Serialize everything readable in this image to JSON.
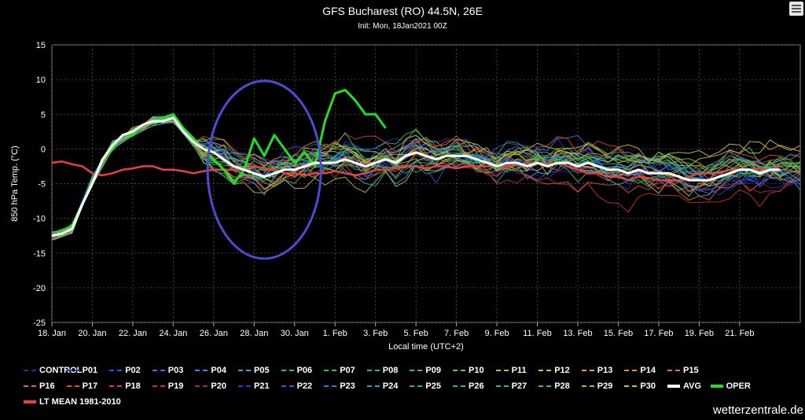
{
  "chart_data": {
    "type": "line",
    "title": "GFS Bucharest (RO) 44.5N, 26E",
    "subtitle": "Init: Mon, 18Jan2021 00Z",
    "xlabel": "Local time (UTC+2)",
    "ylabel": "850 hPa Temp. (°C)",
    "ylim": [
      -25,
      15
    ],
    "yticks": [
      15,
      10,
      5,
      0,
      -5,
      -10,
      -15,
      -20,
      -25
    ],
    "xlim": [
      0,
      37
    ],
    "xticks": [
      {
        "day": 0,
        "label": "18. Jan"
      },
      {
        "day": 2,
        "label": "20. Jan"
      },
      {
        "day": 4,
        "label": "22. Jan"
      },
      {
        "day": 6,
        "label": "24. Jan"
      },
      {
        "day": 8,
        "label": "26. Jan"
      },
      {
        "day": 10,
        "label": "28. Jan"
      },
      {
        "day": 12,
        "label": "30. Jan"
      },
      {
        "day": 14,
        "label": "1. Feb"
      },
      {
        "day": 16,
        "label": "3. Feb"
      },
      {
        "day": 18,
        "label": "5. Feb"
      },
      {
        "day": 20,
        "label": "7. Feb"
      },
      {
        "day": 22,
        "label": "9. Feb"
      },
      {
        "day": 24,
        "label": "11. Feb"
      },
      {
        "day": 26,
        "label": "13. Feb"
      },
      {
        "day": 28,
        "label": "15. Feb"
      },
      {
        "day": 30,
        "label": "17. Feb"
      },
      {
        "day": 32,
        "label": "19. Feb"
      },
      {
        "day": 34,
        "label": "21. Feb"
      }
    ],
    "grid": true,
    "legend_position": "bottom",
    "avg": [
      [
        0,
        -12.5
      ],
      [
        0.5,
        -12.2
      ],
      [
        1,
        -11.5
      ],
      [
        1.5,
        -8
      ],
      [
        2,
        -5
      ],
      [
        2.5,
        -1.5
      ],
      [
        3,
        0.5
      ],
      [
        3.5,
        2
      ],
      [
        4,
        2.5
      ],
      [
        4.5,
        3.5
      ],
      [
        5,
        4
      ],
      [
        5.5,
        4
      ],
      [
        6,
        4.5
      ],
      [
        6.5,
        2.5
      ],
      [
        7,
        1
      ],
      [
        7.5,
        0
      ],
      [
        8,
        -0.5
      ],
      [
        8.5,
        -1.5
      ],
      [
        9,
        -2.5
      ],
      [
        9.5,
        -3
      ],
      [
        10,
        -3.5
      ],
      [
        10.5,
        -4
      ],
      [
        11,
        -3.5
      ],
      [
        11.5,
        -3
      ],
      [
        12,
        -3
      ],
      [
        12.5,
        -2.5
      ],
      [
        13,
        -2
      ],
      [
        13.5,
        -2
      ],
      [
        14,
        -2
      ],
      [
        14.5,
        -1.5
      ],
      [
        15,
        -2
      ],
      [
        15.5,
        -2.5
      ],
      [
        16,
        -2
      ],
      [
        16.5,
        -1.5
      ],
      [
        17,
        -2
      ],
      [
        17.5,
        -1
      ],
      [
        18,
        -0.5
      ],
      [
        18.5,
        -1
      ],
      [
        19,
        -1.5
      ],
      [
        19.5,
        -1
      ],
      [
        20,
        -1
      ],
      [
        20.5,
        -1
      ],
      [
        21,
        -1.5
      ],
      [
        21.5,
        -2
      ],
      [
        22,
        -2.5
      ],
      [
        22.5,
        -2
      ],
      [
        23,
        -2
      ],
      [
        23.5,
        -2.5
      ],
      [
        24,
        -2
      ],
      [
        24.5,
        -2.5
      ],
      [
        25,
        -2
      ],
      [
        25.5,
        -2
      ],
      [
        26,
        -2.5
      ],
      [
        26.5,
        -2
      ],
      [
        27,
        -2.5
      ],
      [
        27.5,
        -3
      ],
      [
        28,
        -3
      ],
      [
        28.5,
        -3.5
      ],
      [
        29,
        -3
      ],
      [
        29.5,
        -3.5
      ],
      [
        30,
        -3.5
      ],
      [
        30.5,
        -3.5
      ],
      [
        31,
        -4
      ],
      [
        31.5,
        -4.5
      ],
      [
        32,
        -4.5
      ],
      [
        32.5,
        -4.5
      ],
      [
        33,
        -4
      ],
      [
        33.5,
        -3.5
      ],
      [
        34,
        -3
      ],
      [
        34.5,
        -3
      ],
      [
        35,
        -3.5
      ],
      [
        35.5,
        -3
      ],
      [
        36,
        -3
      ]
    ],
    "oper": [
      [
        0,
        -12.5
      ],
      [
        0.5,
        -12
      ],
      [
        1,
        -11
      ],
      [
        1.5,
        -8
      ],
      [
        2,
        -5
      ],
      [
        2.5,
        -1.5
      ],
      [
        3,
        0
      ],
      [
        3.5,
        2
      ],
      [
        4,
        2
      ],
      [
        4.5,
        3.5
      ],
      [
        5,
        4
      ],
      [
        5.5,
        4.5
      ],
      [
        6,
        5
      ],
      [
        6.5,
        3
      ],
      [
        7,
        1.5
      ],
      [
        7.5,
        0
      ],
      [
        8,
        -1.5
      ],
      [
        8.5,
        -3
      ],
      [
        9,
        -5
      ],
      [
        9.5,
        -3
      ],
      [
        10,
        1.5
      ],
      [
        10.5,
        -1
      ],
      [
        11,
        2
      ],
      [
        11.5,
        0
      ],
      [
        12,
        -2
      ],
      [
        12.5,
        -0.5
      ],
      [
        13,
        -2.5
      ],
      [
        13.5,
        4
      ],
      [
        14,
        8
      ],
      [
        14.5,
        8.5
      ],
      [
        15,
        7
      ],
      [
        15.5,
        5
      ],
      [
        16,
        5
      ],
      [
        16.5,
        3
      ]
    ],
    "lt_mean": [
      [
        0,
        -2
      ],
      [
        0.5,
        -1.8
      ],
      [
        1,
        -2.2
      ],
      [
        1.5,
        -2.5
      ],
      [
        2,
        -3.5
      ],
      [
        2.5,
        -3.8
      ],
      [
        3,
        -3.5
      ],
      [
        3.5,
        -3
      ],
      [
        4,
        -2.8
      ],
      [
        4.5,
        -2.5
      ],
      [
        5,
        -2.5
      ],
      [
        5.5,
        -3
      ],
      [
        6,
        -3
      ],
      [
        6.5,
        -3.2
      ],
      [
        7,
        -3.5
      ],
      [
        7.5,
        -3.2
      ],
      [
        8,
        -3
      ],
      [
        8.5,
        -3
      ],
      [
        9,
        -3
      ],
      [
        9.5,
        -2.8
      ],
      [
        10,
        -2.5
      ],
      [
        10.5,
        -2.8
      ],
      [
        11,
        -3
      ],
      [
        11.5,
        -3.5
      ],
      [
        12,
        -3.5
      ],
      [
        12.5,
        -3.8
      ],
      [
        13,
        -3.5
      ],
      [
        13.5,
        -3.5
      ],
      [
        14,
        -3.2
      ],
      [
        14.5,
        -3.5
      ],
      [
        15,
        -3.8
      ],
      [
        15.5,
        -3.5
      ],
      [
        16,
        -3
      ],
      [
        16.5,
        -3
      ],
      [
        17,
        -2.8
      ],
      [
        17.5,
        -2.5
      ],
      [
        18,
        -2.5
      ],
      [
        18.5,
        -2.8
      ],
      [
        19,
        -2.5
      ],
      [
        19.5,
        -2.5
      ],
      [
        20,
        -2.8
      ],
      [
        20.5,
        -2.5
      ],
      [
        21,
        -2.5
      ],
      [
        21.5,
        -2.5
      ],
      [
        22,
        -2.5
      ],
      [
        22.5,
        -2.5
      ],
      [
        23,
        -2.3
      ],
      [
        23.5,
        -2
      ],
      [
        24,
        -2
      ],
      [
        24.5,
        -2.2
      ],
      [
        25,
        -2
      ],
      [
        25.5,
        -2.5
      ],
      [
        26,
        -3
      ],
      [
        26.5,
        -3.5
      ],
      [
        27,
        -3.5
      ],
      [
        27.5,
        -4
      ],
      [
        28,
        -4
      ],
      [
        28.5,
        -4.5
      ],
      [
        29,
        -4
      ],
      [
        29.5,
        -4.2
      ],
      [
        30,
        -4.5
      ],
      [
        30.5,
        -4.5
      ],
      [
        31,
        -4.5
      ],
      [
        31.5,
        -4
      ],
      [
        32,
        -3.5
      ],
      [
        32.5,
        -3.5
      ],
      [
        33,
        -3.5
      ],
      [
        33.5,
        -3
      ],
      [
        34,
        -3
      ],
      [
        34.5,
        -3
      ],
      [
        35,
        -2.8
      ],
      [
        35.5,
        -3
      ],
      [
        36,
        -2.5
      ]
    ],
    "members_start": [
      [
        0,
        -12.5
      ],
      [
        1,
        -11.5
      ],
      [
        2,
        -4.5
      ],
      [
        3,
        0.5
      ],
      [
        4,
        2.5
      ],
      [
        5,
        4
      ],
      [
        6,
        4.5
      ],
      [
        7,
        1
      ]
    ],
    "members_end_day": 37,
    "annotation_circle": {
      "cx_day": 10.5,
      "cy_value": -3,
      "rx_days": 2.8,
      "ry_value": 12.8,
      "color": "#4b4bd6"
    },
    "series": [
      {
        "name": "CONTROL",
        "color": "#1f2fb8"
      },
      {
        "name": "P01",
        "color": "#2438c8"
      },
      {
        "name": "P02",
        "color": "#2f55e0"
      },
      {
        "name": "P03",
        "color": "#3a78e8"
      },
      {
        "name": "P04",
        "color": "#3a8fe8"
      },
      {
        "name": "P05",
        "color": "#36a7d8"
      },
      {
        "name": "P06",
        "color": "#2fb2a8"
      },
      {
        "name": "P07",
        "color": "#33b680"
      },
      {
        "name": "P08",
        "color": "#3bbd55"
      },
      {
        "name": "P09",
        "color": "#48c236"
      },
      {
        "name": "P10",
        "color": "#7cc23a"
      },
      {
        "name": "P11",
        "color": "#b3c43c"
      },
      {
        "name": "P12",
        "color": "#d6c040"
      },
      {
        "name": "P13",
        "color": "#e0a83c"
      },
      {
        "name": "P14",
        "color": "#e08c3a"
      },
      {
        "name": "P15",
        "color": "#e07a3a"
      },
      {
        "name": "P16",
        "color": "#e06838"
      },
      {
        "name": "P17",
        "color": "#e05236"
      },
      {
        "name": "P18",
        "color": "#e03c36"
      },
      {
        "name": "P19",
        "color": "#c83030"
      },
      {
        "name": "P20",
        "color": "#b02a30"
      },
      {
        "name": "P21",
        "color": "#2a3cc8"
      },
      {
        "name": "P22",
        "color": "#3258d8"
      },
      {
        "name": "P23",
        "color": "#3a74e0"
      },
      {
        "name": "P24",
        "color": "#33a0c8"
      },
      {
        "name": "P25",
        "color": "#2fb0a0"
      },
      {
        "name": "P26",
        "color": "#34b878"
      },
      {
        "name": "P27",
        "color": "#3cbe58"
      },
      {
        "name": "P28",
        "color": "#4cc23a"
      },
      {
        "name": "P29",
        "color": "#8ec83c"
      },
      {
        "name": "P30",
        "color": "#d0c444"
      },
      {
        "name": "AVG",
        "color": "#ffffff"
      },
      {
        "name": "OPER",
        "color": "#22dd22"
      },
      {
        "name": "LT MEAN 1981-2010",
        "color": "#e84040"
      }
    ]
  },
  "watermark": "wetterzentrale.de"
}
